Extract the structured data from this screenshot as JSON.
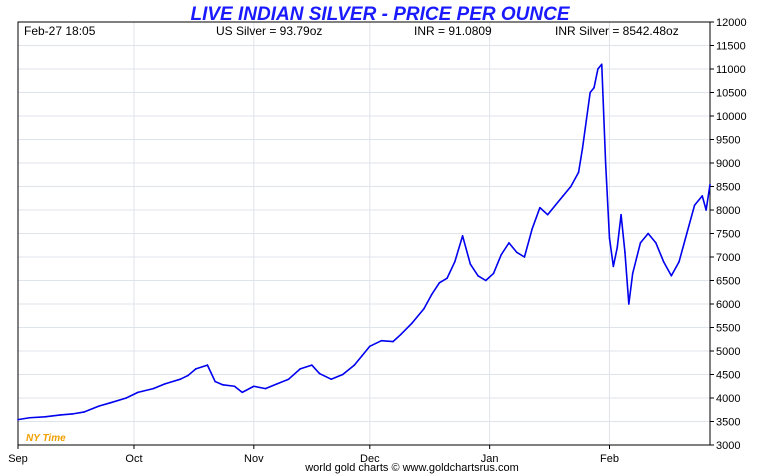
{
  "header": {
    "title": "LIVE INDIAN SILVER - PRICE PER OUNCE",
    "datetime": "Feb-27  18:05",
    "us_silver": "US Silver = 93.79oz",
    "inr_rate": "INR = 91.0809",
    "inr_silver": "INR Silver = 8542.48oz"
  },
  "timezone_label": "NY Time",
  "credit": "world gold charts © www.goldchartsrus.com",
  "colors": {
    "series": "#0000ee",
    "title": "#1a1aff",
    "grid": "#dfe3ea",
    "timezone": "#f0a000"
  },
  "chart_data": {
    "type": "line",
    "title": "LIVE INDIAN SILVER - PRICE PER OUNCE",
    "xlabel": "",
    "ylabel": "",
    "ylim": [
      3000,
      12000
    ],
    "y_ticks": [
      3000,
      3500,
      4000,
      4500,
      5000,
      5500,
      6000,
      6500,
      7000,
      7500,
      8000,
      8500,
      9000,
      9500,
      10000,
      10500,
      11000,
      11500,
      12000
    ],
    "x_range": [
      "2025-09-01",
      "2026-02-27"
    ],
    "x_ticks": [
      {
        "label": "Sep",
        "date": "2025-09-01"
      },
      {
        "label": "Oct",
        "date": "2025-10-01"
      },
      {
        "label": "Nov",
        "date": "2025-11-01"
      },
      {
        "label": "Dec",
        "date": "2025-12-01"
      },
      {
        "label": "Jan",
        "date": "2026-01-01"
      },
      {
        "label": "Feb",
        "date": "2026-02-01"
      }
    ],
    "y_axis_position": "right",
    "grid": true,
    "series": [
      {
        "points": [
          [
            "2025-09-01",
            3540
          ],
          [
            "2025-09-04",
            3580
          ],
          [
            "2025-09-08",
            3600
          ],
          [
            "2025-09-12",
            3640
          ],
          [
            "2025-09-15",
            3660
          ],
          [
            "2025-09-18",
            3700
          ],
          [
            "2025-09-22",
            3830
          ],
          [
            "2025-09-25",
            3900
          ],
          [
            "2025-09-29",
            4000
          ],
          [
            "2025-10-02",
            4120
          ],
          [
            "2025-10-06",
            4200
          ],
          [
            "2025-10-09",
            4300
          ],
          [
            "2025-10-13",
            4400
          ],
          [
            "2025-10-15",
            4480
          ],
          [
            "2025-10-17",
            4620
          ],
          [
            "2025-10-20",
            4700
          ],
          [
            "2025-10-22",
            4350
          ],
          [
            "2025-10-24",
            4280
          ],
          [
            "2025-10-27",
            4250
          ],
          [
            "2025-10-29",
            4120
          ],
          [
            "2025-11-01",
            4250
          ],
          [
            "2025-11-04",
            4200
          ],
          [
            "2025-11-07",
            4300
          ],
          [
            "2025-11-10",
            4400
          ],
          [
            "2025-11-13",
            4620
          ],
          [
            "2025-11-16",
            4700
          ],
          [
            "2025-11-18",
            4520
          ],
          [
            "2025-11-21",
            4400
          ],
          [
            "2025-11-24",
            4500
          ],
          [
            "2025-11-27",
            4700
          ],
          [
            "2025-11-29",
            4900
          ],
          [
            "2025-12-01",
            5100
          ],
          [
            "2025-12-04",
            5220
          ],
          [
            "2025-12-07",
            5200
          ],
          [
            "2025-12-09",
            5350
          ],
          [
            "2025-12-12",
            5600
          ],
          [
            "2025-12-15",
            5900
          ],
          [
            "2025-12-17",
            6200
          ],
          [
            "2025-12-19",
            6450
          ],
          [
            "2025-12-21",
            6550
          ],
          [
            "2025-12-23",
            6900
          ],
          [
            "2025-12-25",
            7450
          ],
          [
            "2025-12-27",
            6850
          ],
          [
            "2025-12-29",
            6600
          ],
          [
            "2025-12-31",
            6500
          ],
          [
            "2026-01-02",
            6650
          ],
          [
            "2026-01-04",
            7050
          ],
          [
            "2026-01-06",
            7300
          ],
          [
            "2026-01-08",
            7100
          ],
          [
            "2026-01-10",
            7000
          ],
          [
            "2026-01-12",
            7600
          ],
          [
            "2026-01-14",
            8050
          ],
          [
            "2026-01-16",
            7900
          ],
          [
            "2026-01-18",
            8100
          ],
          [
            "2026-01-20",
            8300
          ],
          [
            "2026-01-22",
            8500
          ],
          [
            "2026-01-24",
            8800
          ],
          [
            "2026-01-25",
            9300
          ],
          [
            "2026-01-26",
            9900
          ],
          [
            "2026-01-27",
            10500
          ],
          [
            "2026-01-28",
            10600
          ],
          [
            "2026-01-29",
            11000
          ],
          [
            "2026-01-30",
            11100
          ],
          [
            "2026-01-31",
            9000
          ],
          [
            "2026-02-01",
            7400
          ],
          [
            "2026-02-02",
            6800
          ],
          [
            "2026-02-03",
            7200
          ],
          [
            "2026-02-04",
            7900
          ],
          [
            "2026-02-05",
            7100
          ],
          [
            "2026-02-06",
            6000
          ],
          [
            "2026-02-07",
            6650
          ],
          [
            "2026-02-09",
            7300
          ],
          [
            "2026-02-11",
            7500
          ],
          [
            "2026-02-13",
            7300
          ],
          [
            "2026-02-15",
            6900
          ],
          [
            "2026-02-17",
            6600
          ],
          [
            "2026-02-19",
            6900
          ],
          [
            "2026-02-21",
            7500
          ],
          [
            "2026-02-23",
            8100
          ],
          [
            "2026-02-25",
            8300
          ],
          [
            "2026-02-26",
            8000
          ],
          [
            "2026-02-27",
            8540
          ]
        ]
      }
    ]
  }
}
